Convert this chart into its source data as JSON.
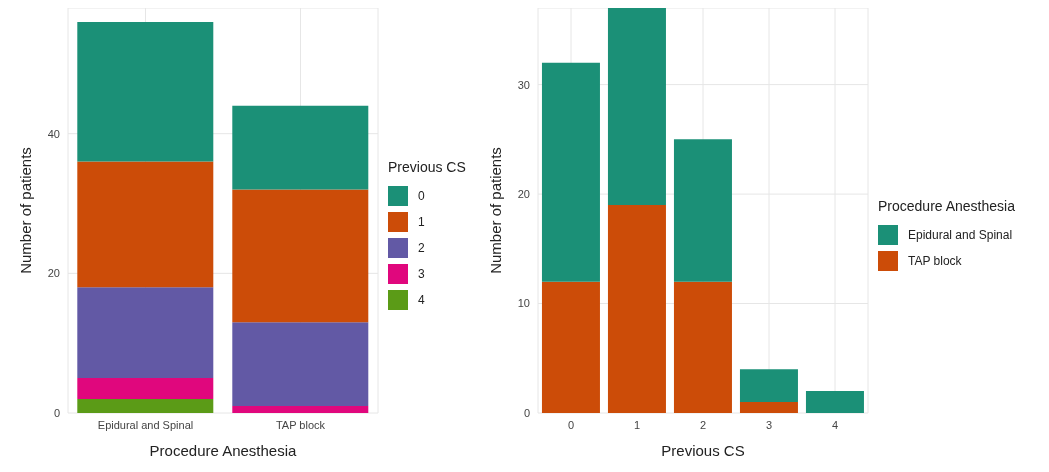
{
  "chart_data": [
    {
      "type": "bar",
      "stacked": true,
      "xlabel": "Procedure Anesthesia",
      "ylabel": "Number of patients",
      "legend_title": "Previous CS",
      "legend": "right",
      "grid": true,
      "categories": [
        "Epidural and Spinal",
        "TAP block"
      ],
      "ylim": [
        0,
        58
      ],
      "yticks": [
        0,
        20,
        40
      ],
      "series": [
        {
          "name": "4",
          "color": "#5b9b17",
          "values": [
            2,
            0
          ]
        },
        {
          "name": "3",
          "color": "#e0077d",
          "values": [
            3,
            1
          ]
        },
        {
          "name": "2",
          "color": "#6259a5",
          "values": [
            13,
            12
          ]
        },
        {
          "name": "1",
          "color": "#cc4c08",
          "values": [
            18,
            19
          ]
        },
        {
          "name": "0",
          "color": "#1b9077",
          "values": [
            20,
            12
          ]
        }
      ]
    },
    {
      "type": "bar",
      "stacked": true,
      "xlabel": "Previous CS",
      "ylabel": "Number of patients",
      "legend_title": "Procedure Anesthesia",
      "legend": "right",
      "grid": true,
      "categories": [
        "0",
        "1",
        "2",
        "3",
        "4"
      ],
      "ylim": [
        0,
        37
      ],
      "yticks": [
        0,
        10,
        20,
        30
      ],
      "series": [
        {
          "name": "TAP block",
          "color": "#cc4c08",
          "values": [
            12,
            19,
            12,
            1,
            0
          ]
        },
        {
          "name": "Epidural and Spinal",
          "color": "#1b9077",
          "values": [
            20,
            18,
            13,
            3,
            2
          ]
        }
      ]
    }
  ]
}
